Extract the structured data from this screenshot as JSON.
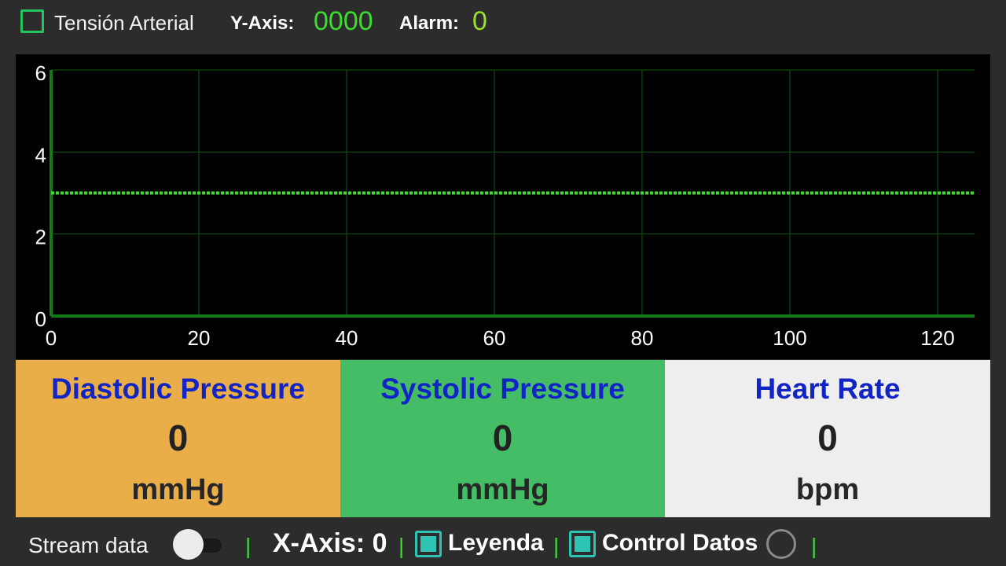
{
  "topbar": {
    "tension_label": "Tensión Arterial",
    "tension_checked": false,
    "yaxis_label": "Y-Axis:",
    "yaxis_value": "0000",
    "alarm_label": "Alarm:",
    "alarm_value": "0"
  },
  "chart_data": {
    "type": "line",
    "title": "",
    "xlabel": "",
    "ylabel": "",
    "xlim": [
      0,
      125
    ],
    "ylim": [
      0,
      6
    ],
    "x_ticks": [
      "0",
      "20",
      "40",
      "60",
      "80",
      "100",
      "120"
    ],
    "y_ticks": [
      "0",
      "2",
      "4",
      "6"
    ],
    "grid": true,
    "legend": "none",
    "series": [
      {
        "color": "#3ddc2f",
        "x": [
          0,
          125
        ],
        "y": [
          3,
          3
        ],
        "style": "dotted"
      }
    ]
  },
  "vitals": {
    "diastolic": {
      "title": "Diastolic Pressure",
      "value": "0",
      "unit": "mmHg"
    },
    "systolic": {
      "title": "Systolic Pressure",
      "value": "0",
      "unit": "mmHg"
    },
    "heart_rate": {
      "title": "Heart Rate",
      "value": "0",
      "unit": "bpm"
    }
  },
  "bottombar": {
    "stream_label": "Stream data",
    "stream_on": false,
    "separator": "|",
    "xaxis_text": "X-Axis: 0",
    "leyenda_label": "Leyenda",
    "leyenda_checked": true,
    "control_label": "Control Datos",
    "control_checked": true,
    "radio_selected": false
  },
  "colors": {
    "background": "#2c2c2c",
    "accent_green": "#3ddc2f",
    "diastolic_card": "#eaae48",
    "systolic_card": "#44bd66",
    "heart_card": "#eeeeee",
    "vital_title": "#1225c4",
    "checkbox_teal": "#2ec3b2"
  }
}
